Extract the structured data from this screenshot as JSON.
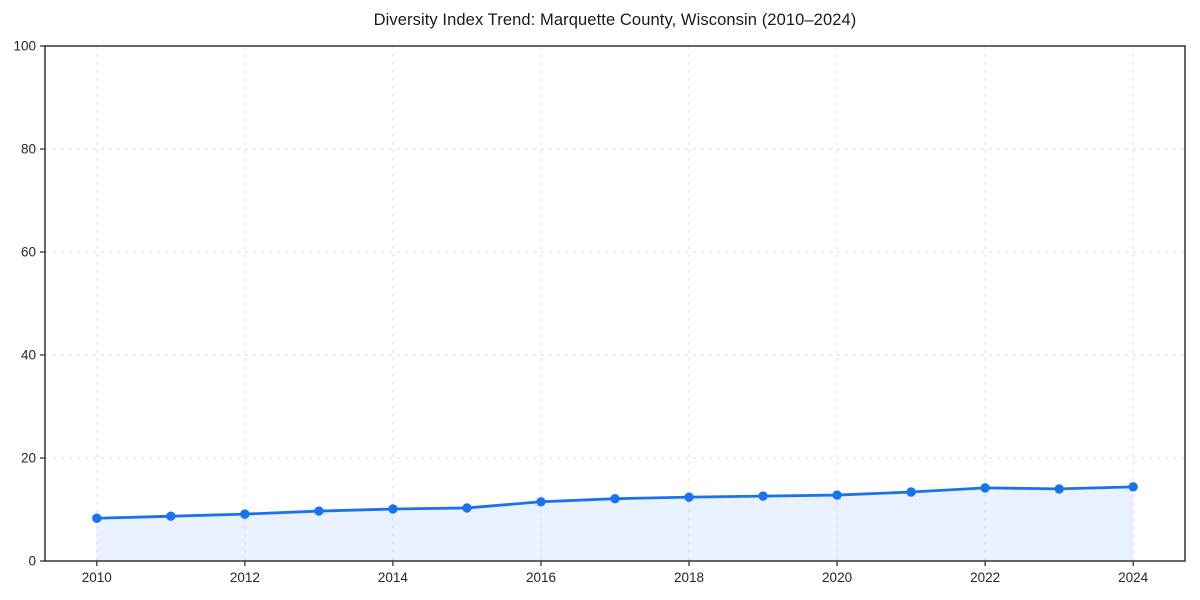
{
  "chart_data": {
    "type": "area",
    "title": "Diversity Index Trend: Marquette County, Wisconsin (2010–2024)",
    "xlabel": "",
    "ylabel": "",
    "x": [
      2010,
      2011,
      2012,
      2013,
      2014,
      2015,
      2016,
      2017,
      2018,
      2019,
      2020,
      2021,
      2022,
      2023,
      2024
    ],
    "series": [
      {
        "name": "Diversity Index",
        "values": [
          8.3,
          8.7,
          9.1,
          9.7,
          10.1,
          10.3,
          11.5,
          12.1,
          12.4,
          12.6,
          12.8,
          13.4,
          14.2,
          14.0,
          14.4
        ]
      }
    ],
    "xticks": [
      2010,
      2012,
      2014,
      2016,
      2018,
      2020,
      2022,
      2024
    ],
    "yticks": [
      0,
      20,
      40,
      60,
      80,
      100
    ],
    "xlim": [
      2009.3,
      2024.7
    ],
    "ylim": [
      0,
      100
    ],
    "grid": true,
    "legend": "none",
    "line_color": "#1a73e8",
    "fill_color": "rgba(26,115,232,0.10)",
    "grid_color": "#dedede",
    "spine_color": "#262626",
    "text_color": "#262626",
    "marker": "circle"
  }
}
